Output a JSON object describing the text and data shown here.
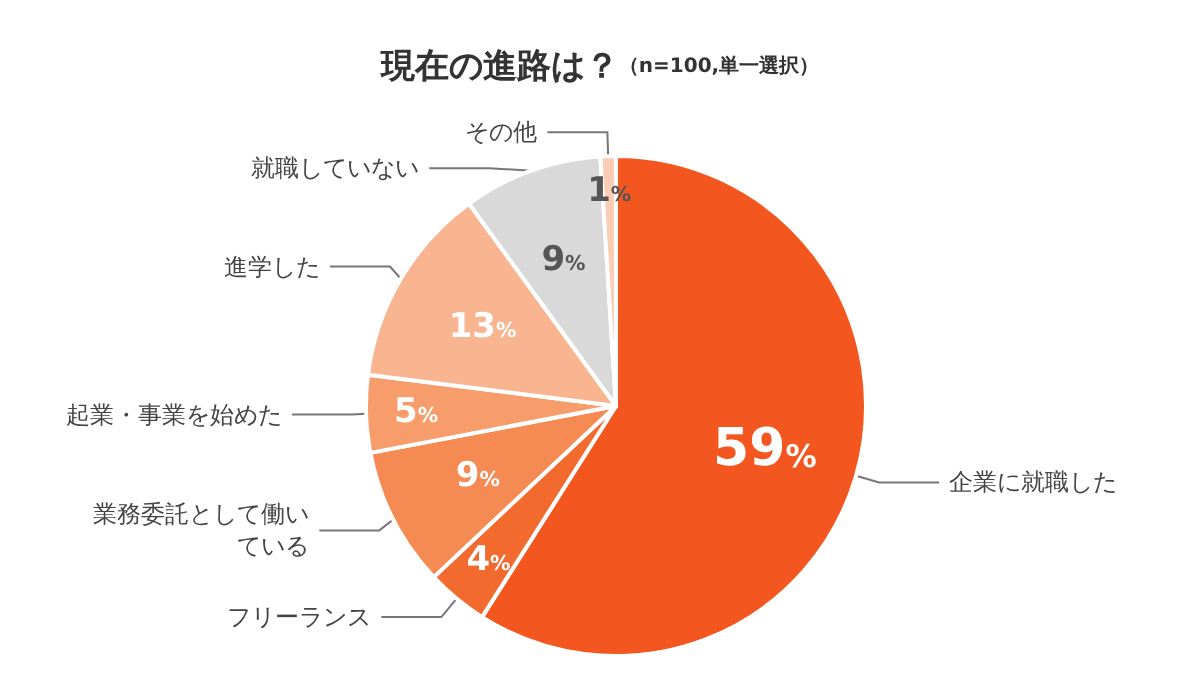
{
  "chart_data": {
    "type": "pie",
    "title": "現在の進路は？",
    "subtitle": "（n=100,単一選択）",
    "categories": [
      "企業に就職した",
      "フリーランス",
      "業務委託として働いている",
      "起業・事業を始めた",
      "進学した",
      "就職していない",
      "その他"
    ],
    "values": [
      59,
      4,
      9,
      5,
      13,
      9,
      1
    ],
    "value_labels": [
      "59%",
      "4%",
      "9%",
      "5%",
      "13%",
      "9%",
      "1%"
    ],
    "colors": [
      "#f4561f",
      "#f26a2e",
      "#f58a52",
      "#f79d6c",
      "#f9b490",
      "#d9d9d9",
      "#fbcdb4"
    ],
    "legend": false
  }
}
